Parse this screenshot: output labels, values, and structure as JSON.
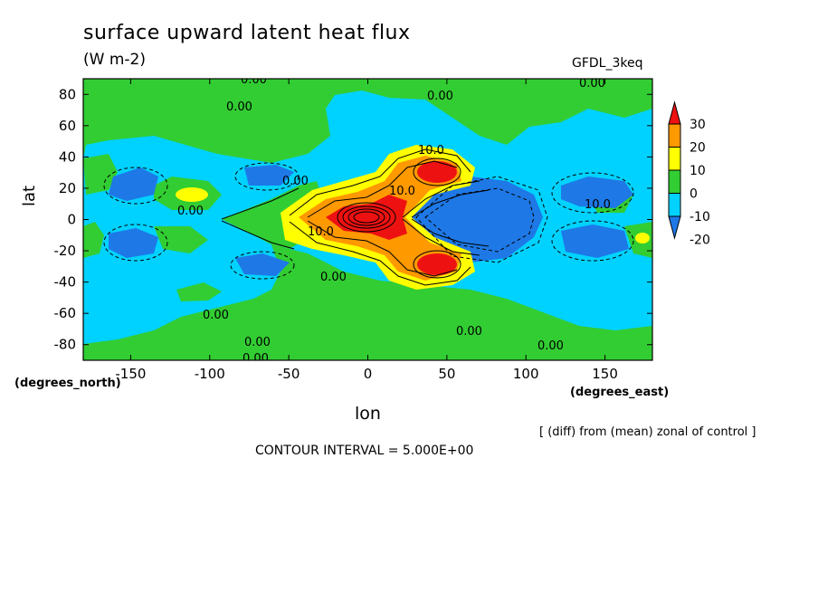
{
  "chart_data": {
    "type": "contour-map",
    "title": "surface upward latent heat flux",
    "units": "(W m-2)",
    "model": "GFDL_3keq",
    "xlabel": "lon",
    "ylabel": "lat",
    "xunits": "(degrees_east)",
    "yunits": "(degrees_north)",
    "xlim": [
      -180,
      180
    ],
    "ylim": [
      -90,
      90
    ],
    "xticks": [
      -150,
      -100,
      -50,
      0,
      50,
      100,
      150
    ],
    "yticks": [
      -80,
      -60,
      -40,
      -20,
      0,
      20,
      40,
      60,
      80
    ],
    "xtick_labels": [
      "-150",
      "-100",
      "-50",
      "0",
      "50",
      "100",
      "150"
    ],
    "ytick_labels": [
      "-80",
      "-60",
      "-40",
      "-20",
      "0",
      "20",
      "40",
      "60",
      "80"
    ],
    "note": "[ (diff) from (mean) zonal of control ]",
    "contour_interval": "CONTOUR INTERVAL = 5.000E+00",
    "colorbar": {
      "levels": [
        -20,
        -10,
        0,
        10,
        20,
        30
      ],
      "labels": [
        "-20",
        "-10",
        "0",
        "10",
        "20",
        "30"
      ],
      "colors": [
        "#1e78e6",
        "#00d2ff",
        "#32cd32",
        "#ffff00",
        "#ff9900",
        "#ee1111"
      ]
    },
    "contour_labels": [
      "0.00",
      "0.00",
      "0.00",
      "0.00",
      "0.00",
      "0.00",
      "0.00",
      "0.00",
      "0.00",
      "0.00",
      "0.00",
      "0.00",
      "10.0",
      "10.0",
      "10.0",
      "10.0"
    ],
    "features": [
      {
        "name": "equatorial-positive-core",
        "lon": 0,
        "lat": 0,
        "value": 30
      },
      {
        "name": "positive-lobe-north",
        "lon": 45,
        "lat": 28,
        "value": 30
      },
      {
        "name": "positive-lobe-south",
        "lon": 45,
        "lat": -28,
        "value": 30
      },
      {
        "name": "negative-wedge-east",
        "lon": 80,
        "lat": 10,
        "value": -20
      },
      {
        "name": "negative-wedge-east-south",
        "lon": 80,
        "lat": -15,
        "value": -20
      }
    ]
  }
}
